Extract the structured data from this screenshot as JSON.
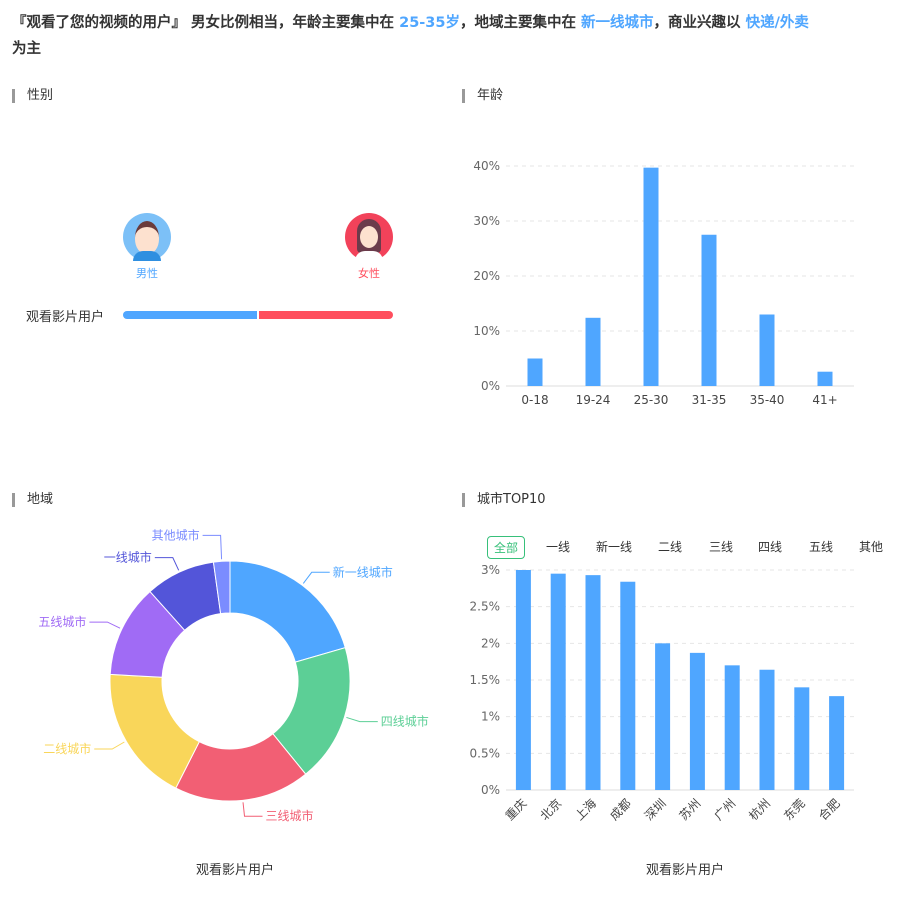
{
  "summary": {
    "p1": "『观看了您的视频的用户』 男女比例相当，年龄主要集中在 ",
    "age": "25-35岁",
    "p2": "，地域主要集中在 ",
    "region": "新一线城市",
    "p3": "，商业兴趣以 ",
    "interest": "快递/外卖",
    "p4": "为主"
  },
  "gender": {
    "title": "性别",
    "male": "男性",
    "female": "女性",
    "row_label": "观看影片用户",
    "male_share": 50,
    "female_share": 50,
    "male_color": "#4fa6ff",
    "female_color": "#ff4f5e"
  },
  "age_title": "年龄",
  "region_title": "地域",
  "region_caption": "观看影片用户",
  "city_title": "城市TOP10",
  "city_caption": "观看影片用户",
  "city_tabs": [
    "全部",
    "一线",
    "新一线",
    "二线",
    "三线",
    "四线",
    "五线",
    "其他"
  ],
  "chart_data": [
    {
      "type": "bar",
      "categories": [
        "0-18",
        "19-24",
        "25-30",
        "31-35",
        "35-40",
        "41+"
      ],
      "values": [
        5,
        12.4,
        39.7,
        27.5,
        13,
        2.6
      ],
      "ylim": [
        0,
        40
      ],
      "yticks": [
        "0%",
        "10%",
        "20%",
        "30%",
        "40%"
      ],
      "color": "#4fa6ff",
      "grid": true
    },
    {
      "type": "pie",
      "labels": [
        "新一线城市",
        "四线城市",
        "三线城市",
        "二线城市",
        "五线城市",
        "一线城市",
        "其他城市"
      ],
      "values": [
        20.5,
        18.6,
        18.3,
        18.4,
        12.5,
        9.4,
        2.2
      ],
      "colors": [
        "#4fa6ff",
        "#5ccf96",
        "#f25f74",
        "#f9d65a",
        "#a06bf5",
        "#5355d9",
        "#7b8cff"
      ],
      "donut": true
    },
    {
      "type": "bar",
      "categories": [
        "重庆",
        "北京",
        "上海",
        "成都",
        "深圳",
        "苏州",
        "广州",
        "杭州",
        "东莞",
        "合肥"
      ],
      "values": [
        3.0,
        2.95,
        2.93,
        2.84,
        2.0,
        1.87,
        1.7,
        1.64,
        1.4,
        1.28
      ],
      "ylim": [
        0,
        3
      ],
      "yticks": [
        "0%",
        "0.5%",
        "1%",
        "1.5%",
        "2%",
        "2.5%",
        "3%"
      ],
      "color": "#4fa6ff",
      "grid": true
    }
  ]
}
